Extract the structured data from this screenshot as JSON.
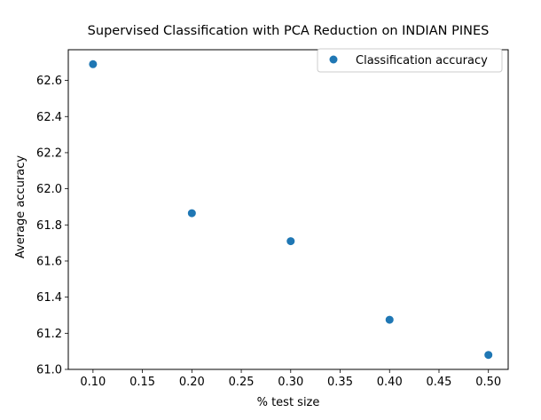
{
  "chart_data": {
    "type": "scatter",
    "title": "Supervised Classification with PCA Reduction on INDIAN PINES",
    "xlabel": "% test size",
    "ylabel": "Average accuracy",
    "xlim": [
      0.075,
      0.52
    ],
    "ylim": [
      61.0,
      62.77
    ],
    "xticks": [
      0.1,
      0.15,
      0.2,
      0.25,
      0.3,
      0.35,
      0.4,
      0.45,
      0.5
    ],
    "xtick_labels": [
      "0.10",
      "0.15",
      "0.20",
      "0.25",
      "0.30",
      "0.35",
      "0.40",
      "0.45",
      "0.50"
    ],
    "yticks": [
      61.0,
      61.2,
      61.4,
      61.6,
      61.8,
      62.0,
      62.2,
      62.4,
      62.6
    ],
    "ytick_labels": [
      "61.0",
      "61.2",
      "61.4",
      "61.6",
      "61.8",
      "62.0",
      "62.2",
      "62.4",
      "62.6"
    ],
    "grid": false,
    "legend_position": "top-right",
    "series": [
      {
        "name": "Classification accuracy",
        "color": "#1f77b4",
        "x": [
          0.1,
          0.2,
          0.3,
          0.4,
          0.5
        ],
        "y": [
          62.69,
          61.865,
          61.71,
          61.275,
          61.08
        ]
      }
    ]
  }
}
